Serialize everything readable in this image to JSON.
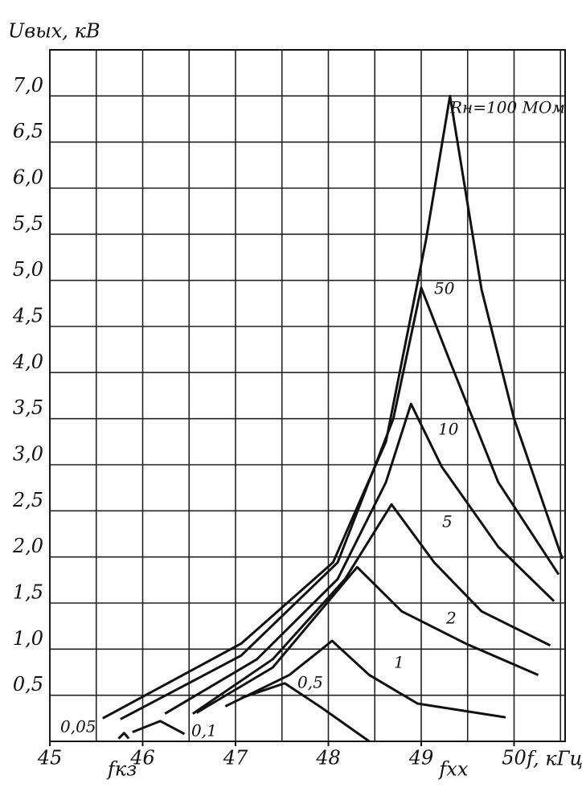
{
  "chart_data": {
    "type": "line",
    "y_label": "Uвых, кВ",
    "x_label": "f, кГц",
    "annotations": [
      {
        "text": "fкз",
        "x": 45.78
      },
      {
        "text": "fxx",
        "x": 49.35
      }
    ],
    "xlim": [
      45,
      50.55
    ],
    "ylim": [
      0,
      7.5
    ],
    "xticks": [
      45,
      46,
      47,
      48,
      49,
      50
    ],
    "xgrid": [
      45,
      45.5,
      46,
      46.5,
      47,
      47.5,
      48,
      48.5,
      49,
      49.5,
      50,
      50.5
    ],
    "yticks": [
      {
        "value": 0.5,
        "label": "0,5"
      },
      {
        "value": 1,
        "label": "1,0"
      },
      {
        "value": 1.5,
        "label": "1,5"
      },
      {
        "value": 2,
        "label": "2,0"
      },
      {
        "value": 2.5,
        "label": "2,5"
      },
      {
        "value": 3,
        "label": "3,0"
      },
      {
        "value": 3.5,
        "label": "3,5"
      },
      {
        "value": 4,
        "label": "4,0"
      },
      {
        "value": 4.5,
        "label": "4,5"
      },
      {
        "value": 5,
        "label": "5,0"
      },
      {
        "value": 5.5,
        "label": "5,5"
      },
      {
        "value": 6,
        "label": "6,0"
      },
      {
        "value": 6.5,
        "label": "6,5"
      },
      {
        "value": 7,
        "label": "7,0"
      }
    ],
    "grid": true,
    "series": [
      {
        "name": "Rн=100 МОм",
        "color": "#111",
        "x": [
          45.57,
          47.06,
          48.05,
          48.62,
          49.05,
          49.31,
          49.65,
          50.0,
          50.52
        ],
        "values": [
          0.25,
          1.06,
          1.94,
          3.25,
          5.43,
          7.0,
          4.9,
          3.5,
          1.98
        ]
      },
      {
        "name": "50",
        "color": "#111",
        "x": [
          45.76,
          47.06,
          48.1,
          48.7,
          49.0,
          49.31,
          49.83,
          50.48
        ],
        "values": [
          0.24,
          0.93,
          1.94,
          3.5,
          4.92,
          4.12,
          2.81,
          1.81
        ]
      },
      {
        "name": "10",
        "color": "#111",
        "x": [
          46.24,
          47.23,
          48.1,
          48.62,
          48.89,
          49.22,
          49.83,
          50.43
        ],
        "values": [
          0.3,
          0.89,
          1.76,
          2.81,
          3.66,
          2.98,
          2.11,
          1.52
        ]
      },
      {
        "name": "5",
        "color": "#111",
        "x": [
          46.54,
          47.4,
          48.18,
          48.68,
          49.14,
          49.65,
          50.39
        ],
        "values": [
          0.3,
          0.89,
          1.76,
          2.57,
          1.94,
          1.41,
          1.04
        ]
      },
      {
        "name": "2",
        "color": "#111",
        "x": [
          46.58,
          47.4,
          48.31,
          48.79,
          49.48,
          50.26
        ],
        "values": [
          0.31,
          0.8,
          1.89,
          1.41,
          1.06,
          0.72
        ]
      },
      {
        "name": "1",
        "color": "#111",
        "x": [
          46.89,
          47.58,
          48.04,
          48.44,
          48.96,
          49.91
        ],
        "values": [
          0.38,
          0.72,
          1.09,
          0.72,
          0.41,
          0.26
        ]
      },
      {
        "name": "0,5",
        "color": "#111",
        "x": [
          47.06,
          47.53,
          47.92,
          48.44
        ],
        "values": [
          0.47,
          0.63,
          0.37,
          0
        ]
      },
      {
        "name": "0,1",
        "color": "#111",
        "x": [
          45.89,
          46.19,
          46.45
        ],
        "values": [
          0.1,
          0.22,
          0.08
        ]
      },
      {
        "name": "0,05",
        "color": "#111",
        "x": [
          45.74,
          45.8,
          45.85
        ],
        "values": [
          0.03,
          0.09,
          0.03
        ]
      }
    ]
  }
}
